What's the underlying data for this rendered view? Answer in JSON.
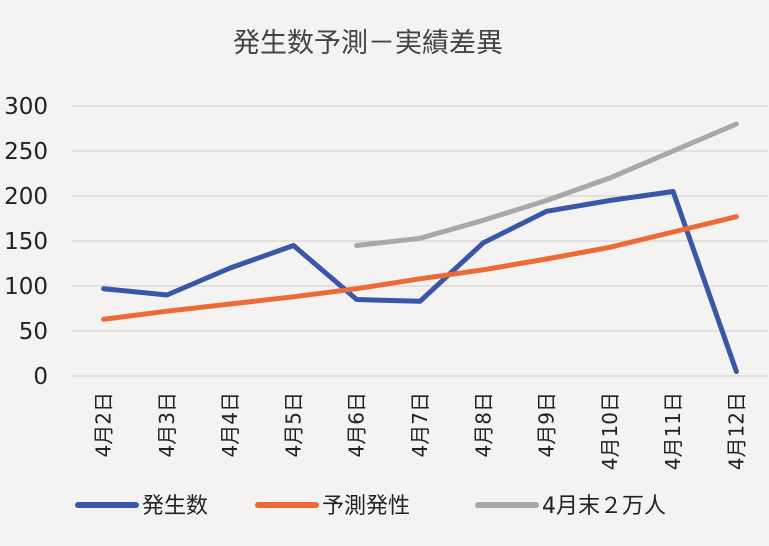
{
  "chart_data": {
    "type": "line",
    "title": "発生数予測－実績差異",
    "xlabel": "",
    "ylabel": "",
    "ylim": [
      0,
      300
    ],
    "yticks": [
      "0",
      "50",
      "100",
      "150",
      "200",
      "250",
      "300"
    ],
    "categories": [
      "4月2日",
      "4月3日",
      "4月4日",
      "4月5日",
      "4月6日",
      "4月7日",
      "4月8日",
      "4月9日",
      "4月10日",
      "4月11日",
      "4月12日"
    ],
    "grid": true,
    "legend": "bottom",
    "series": [
      {
        "name": "発生数",
        "color": "#3a57a7",
        "values": [
          97,
          90,
          120,
          145,
          85,
          83,
          148,
          183,
          195,
          205,
          5
        ]
      },
      {
        "name": "予測発性",
        "color": "#ec6a35",
        "values": [
          63,
          72,
          80,
          88,
          97,
          108,
          118,
          130,
          143,
          160,
          177
        ]
      },
      {
        "name": "4月末２万人",
        "color": "#a8a8a8",
        "values": [
          null,
          null,
          null,
          null,
          145,
          153,
          173,
          195,
          220,
          250,
          280
        ]
      }
    ]
  }
}
